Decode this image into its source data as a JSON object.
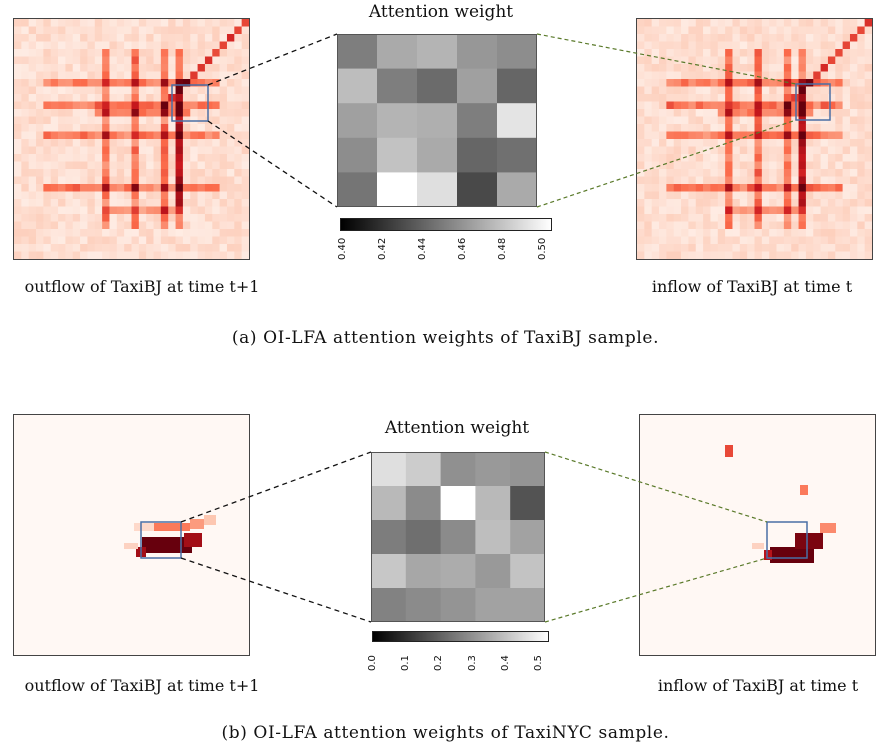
{
  "figure_a": {
    "title": "Attention weight",
    "left_label": "outflow of TaxiBJ at time t+1",
    "right_label": "inflow of TaxiBJ at time t",
    "caption": "(a)  OI-LFA attention weights of TaxiBJ sample.",
    "colorbar_ticks": [
      "0.40",
      "0.42",
      "0.44",
      "0.46",
      "0.48",
      "0.50"
    ],
    "colorbar_range": [
      0.4,
      0.505
    ],
    "colors": {
      "dotted_left": "#111111",
      "dotted_right": "#5a7a2a",
      "box": "#4a6fa5"
    }
  },
  "figure_b": {
    "title": "Attention weight",
    "left_label": "outflow of TaxiBJ at time t+1",
    "right_label": "inflow of TaxiBJ at time t",
    "caption": "(b)  OI-LFA attention weights of TaxiNYC sample.",
    "colorbar_ticks": [
      "0.0",
      "0.1",
      "0.2",
      "0.3",
      "0.4",
      "0.5"
    ],
    "colorbar_range": [
      0.0,
      0.55
    ],
    "colors": {
      "dotted_left": "#111111",
      "dotted_right": "#5a7a2a",
      "box": "#4a6fa5"
    }
  },
  "chart_data": [
    {
      "type": "heatmap",
      "title": "Attention weight",
      "note": "TaxiBJ 5x5 attention weight matrix (grayscale, values estimated)",
      "rows": 5,
      "cols": 5,
      "values": [
        [
          0.452,
          0.47,
          0.474,
          0.462,
          0.458
        ],
        [
          0.478,
          0.452,
          0.444,
          0.466,
          0.442
        ],
        [
          0.466,
          0.474,
          0.472,
          0.452,
          0.494
        ],
        [
          0.458,
          0.48,
          0.47,
          0.442,
          0.446
        ],
        [
          0.448,
          0.505,
          0.492,
          0.43,
          0.47
        ]
      ],
      "vmin": 0.4,
      "vmax": 0.505
    },
    {
      "type": "heatmap",
      "title": "Attention weight",
      "note": "TaxiNYC 5x5 attention weight matrix (grayscale, values estimated)",
      "rows": 5,
      "cols": 5,
      "values": [
        [
          0.48,
          0.44,
          0.31,
          0.33,
          0.32
        ],
        [
          0.4,
          0.3,
          0.55,
          0.4,
          0.18
        ],
        [
          0.27,
          0.24,
          0.3,
          0.41,
          0.35
        ],
        [
          0.43,
          0.36,
          0.37,
          0.33,
          0.42
        ],
        [
          0.28,
          0.3,
          0.32,
          0.35,
          0.35
        ]
      ],
      "vmin": 0.0,
      "vmax": 0.55
    }
  ]
}
